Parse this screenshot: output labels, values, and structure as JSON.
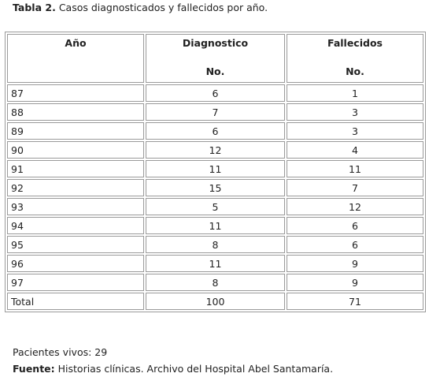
{
  "caption": {
    "label": "Tabla 2.",
    "text": "Casos diagnosticados y fallecidos por año."
  },
  "table": {
    "headers": [
      {
        "title": "Año",
        "sub": ""
      },
      {
        "title": "Diagnostico",
        "sub": "No."
      },
      {
        "title": "Fallecidos",
        "sub": "No."
      }
    ],
    "rows": [
      [
        "87",
        "6",
        "1"
      ],
      [
        "88",
        "7",
        "3"
      ],
      [
        "89",
        "6",
        "3"
      ],
      [
        "90",
        "12",
        "4"
      ],
      [
        "91",
        "11",
        "11"
      ],
      [
        "92",
        "15",
        "7"
      ],
      [
        "93",
        "5",
        "12"
      ],
      [
        "94",
        "11",
        "6"
      ],
      [
        "95",
        "8",
        "6"
      ],
      [
        "96",
        "11",
        "9"
      ],
      [
        "97",
        "8",
        "9"
      ],
      [
        "Total",
        "100",
        "71"
      ]
    ]
  },
  "notes": {
    "pacientes_vivos": "Pacientes vivos: 29",
    "fuente_label": "Fuente:",
    "fuente_text": "Historias clínicas. Archivo del Hospital Abel Santamaría."
  }
}
